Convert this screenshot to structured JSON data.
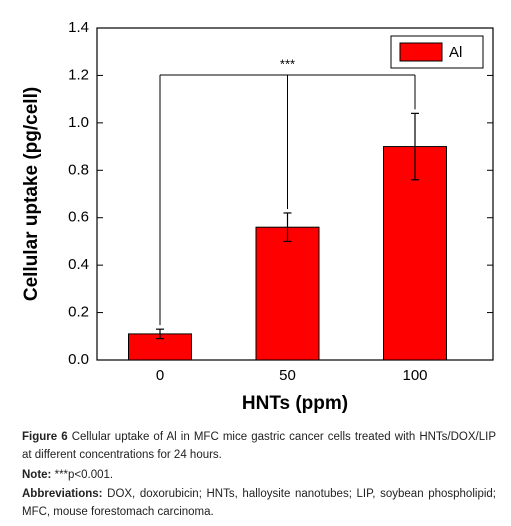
{
  "chart_data": {
    "type": "bar",
    "y_label": "Cellular uptake (pg/cell)",
    "x_label": "HNTs (ppm)",
    "categories": [
      "0",
      "50",
      "100"
    ],
    "series": [
      {
        "name": "Al",
        "color": "#ff0000",
        "values": [
          0.11,
          0.56,
          0.9
        ],
        "errors": [
          0.02,
          0.06,
          0.14
        ]
      }
    ],
    "ylim": [
      0,
      1.4
    ],
    "yticks": [
      {
        "value": 0,
        "label": "0.0"
      },
      0.2,
      0.4,
      0.6,
      0.8,
      {
        "value": 1,
        "label": "1.0"
      },
      1.2,
      1.4
    ],
    "annotation": "***",
    "legend": "upper right",
    "grid": false
  },
  "caption": {
    "figure_label": "Figure 6",
    "figure_text": "Cellular uptake of Al in MFC mice gastric cancer cells treated with HNTs/DOX/LIP at different concentrations for 24 hours.",
    "note_label": "Note:",
    "note_text": "***p<0.001.",
    "abbreviations_label": "Abbreviations:",
    "abbreviations_text": "DOX, doxorubicin; HNTs, halloysite nanotubes; LIP, soybean phospholipid; MFC, mouse forestomach carcinoma."
  }
}
